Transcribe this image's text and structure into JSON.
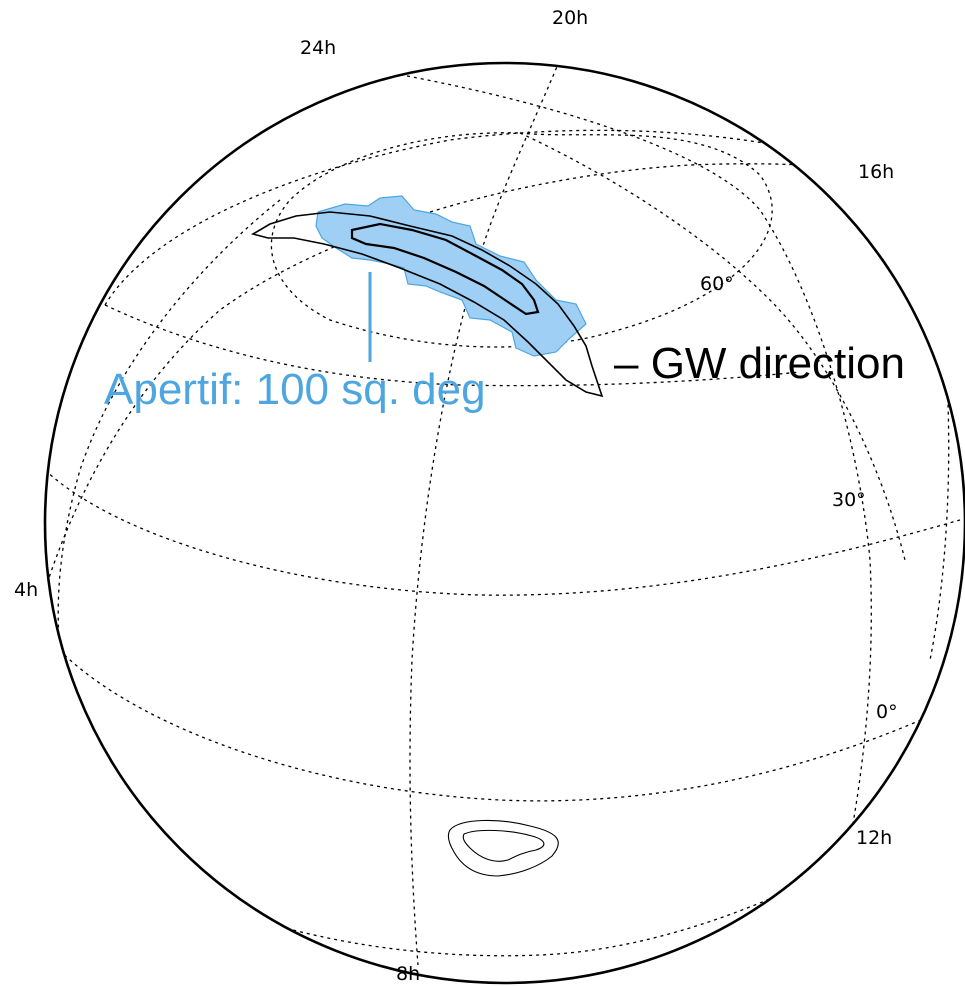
{
  "figure": {
    "ra_labels": [
      "24h",
      "20h",
      "16h",
      "4h",
      "12h",
      "8h"
    ],
    "dec_labels": [
      "60°",
      "30°",
      "0°"
    ],
    "callouts": {
      "apertif": "Apertif: 100 sq. deg",
      "gw": "– GW direction"
    },
    "colors": {
      "apertif": "#4da6e0",
      "apertif_fill": "#9fcff5",
      "contour": "#000000"
    }
  }
}
